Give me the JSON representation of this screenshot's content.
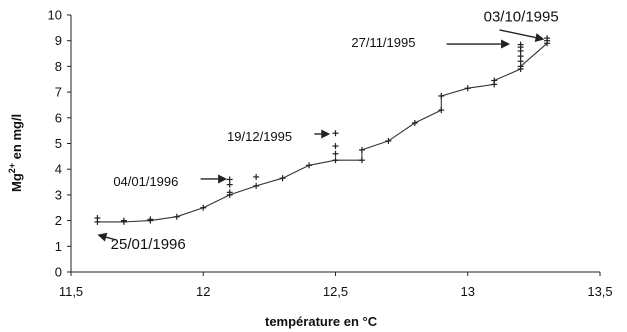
{
  "chart_data": {
    "type": "line",
    "xlabel": "température en °C",
    "ylabel_parts": {
      "base": "Mg",
      "sup": "2+",
      "rest": " en mg/l"
    },
    "xlim": [
      11.5,
      13.5
    ],
    "ylim": [
      0,
      10
    ],
    "x_ticks": [
      "11,5",
      "12",
      "12,5",
      "13",
      "13,5"
    ],
    "x_tick_values": [
      11.5,
      12,
      12.5,
      13,
      13.5
    ],
    "y_ticks": [
      "0",
      "1",
      "2",
      "3",
      "4",
      "5",
      "6",
      "7",
      "8",
      "9",
      "10"
    ],
    "y_tick_values": [
      0,
      1,
      2,
      3,
      4,
      5,
      6,
      7,
      8,
      9,
      10
    ],
    "grid": false,
    "series": [
      {
        "x": [
          11.6,
          11.7,
          11.8,
          11.9,
          12.0,
          12.1,
          12.2,
          12.3,
          12.4,
          12.5,
          12.6,
          12.6,
          12.7,
          12.8,
          12.9,
          12.9,
          13.0,
          13.1,
          13.1,
          13.2,
          13.2,
          13.3
        ],
        "y": [
          1.95,
          1.95,
          2.0,
          2.15,
          2.5,
          3.0,
          3.35,
          3.65,
          4.15,
          4.35,
          4.35,
          4.75,
          5.1,
          5.8,
          6.3,
          6.85,
          7.15,
          7.3,
          7.45,
          7.9,
          8.0,
          8.9
        ]
      }
    ],
    "extra_points": [
      {
        "x": 11.6,
        "y": 2.1
      },
      {
        "x": 11.7,
        "y": 2.0
      },
      {
        "x": 11.8,
        "y": 2.05
      },
      {
        "x": 12.1,
        "y": 3.1
      },
      {
        "x": 12.1,
        "y": 3.4
      },
      {
        "x": 12.1,
        "y": 3.6
      },
      {
        "x": 12.2,
        "y": 3.7
      },
      {
        "x": 12.5,
        "y": 4.6
      },
      {
        "x": 12.5,
        "y": 4.9
      },
      {
        "x": 12.5,
        "y": 5.4
      },
      {
        "x": 13.2,
        "y": 8.2
      },
      {
        "x": 13.2,
        "y": 8.4
      },
      {
        "x": 13.2,
        "y": 8.6
      },
      {
        "x": 13.2,
        "y": 8.75
      },
      {
        "x": 13.2,
        "y": 8.85
      },
      {
        "x": 13.3,
        "y": 9.0
      },
      {
        "x": 13.3,
        "y": 9.1
      }
    ],
    "annotations": [
      {
        "text": "03/10/1995",
        "tx": 13.06,
        "ty": 9.75,
        "ax1": 13.12,
        "ay1": 9.42,
        "ax2": 13.29,
        "ay2": 9.05,
        "size": "big"
      },
      {
        "text": "27/11/1995",
        "tx": 12.56,
        "ty": 8.75,
        "ax1": 12.92,
        "ay1": 8.87,
        "ax2": 13.16,
        "ay2": 8.87,
        "size": "normal"
      },
      {
        "text": "19/12/1995",
        "tx": 12.09,
        "ty": 5.1,
        "ax1": 12.42,
        "ay1": 5.37,
        "ax2": 12.48,
        "ay2": 5.37,
        "size": "normal"
      },
      {
        "text": "04/01/1996",
        "tx": 11.66,
        "ty": 3.35,
        "ax1": 11.99,
        "ay1": 3.62,
        "ax2": 12.09,
        "ay2": 3.62,
        "size": "normal"
      },
      {
        "text": "25/01/1996",
        "tx": 11.65,
        "ty": 0.9,
        "ax1": 11.67,
        "ay1": 1.25,
        "ax2": 11.6,
        "ay2": 1.45,
        "size": "big"
      }
    ]
  }
}
